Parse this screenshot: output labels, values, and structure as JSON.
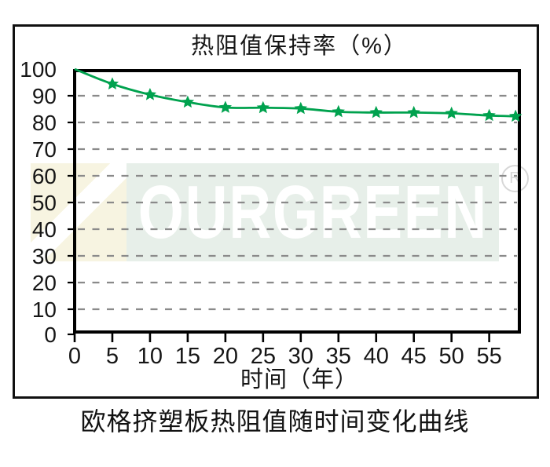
{
  "figure": {
    "title": "热阻值保持率（%）",
    "x_axis_label": "时间（年）",
    "caption": "欧格挤塑板热阻值随时间变化曲线"
  },
  "watermark": {
    "text": "OURGREEN",
    "registered_mark": "R",
    "band_color": "#e7efe9",
    "logo_block_color": "#f7f4e1"
  },
  "chart_data": {
    "type": "line",
    "title": "热阻值保持率（%）",
    "xlabel": "时间（年）",
    "ylabel": "",
    "xlim": [
      0,
      59
    ],
    "ylim": [
      0,
      100
    ],
    "x_ticks": [
      0,
      5,
      10,
      15,
      20,
      25,
      30,
      35,
      40,
      45,
      50,
      55
    ],
    "y_ticks": [
      0,
      10,
      20,
      30,
      40,
      50,
      60,
      70,
      80,
      90,
      100
    ],
    "grid_y": [
      10,
      20,
      30,
      40,
      50,
      60,
      70,
      80,
      90
    ],
    "grid": true,
    "legend_position": "none",
    "series": [
      {
        "name": "热阻值保持率",
        "color": "#00a24e",
        "marker": "star",
        "marker_on_first_point": false,
        "x": [
          0,
          5,
          10,
          15,
          20,
          25,
          30,
          35,
          40,
          45,
          50,
          55,
          58.5
        ],
        "y": [
          100,
          94.4,
          90.4,
          87.6,
          85.6,
          85.5,
          85.2,
          84,
          83.7,
          83.7,
          83.4,
          82.6,
          82.3
        ]
      }
    ],
    "grid_color": "#8a8a8a",
    "axis_color": "#000000",
    "tick_label_color": "#161616"
  }
}
